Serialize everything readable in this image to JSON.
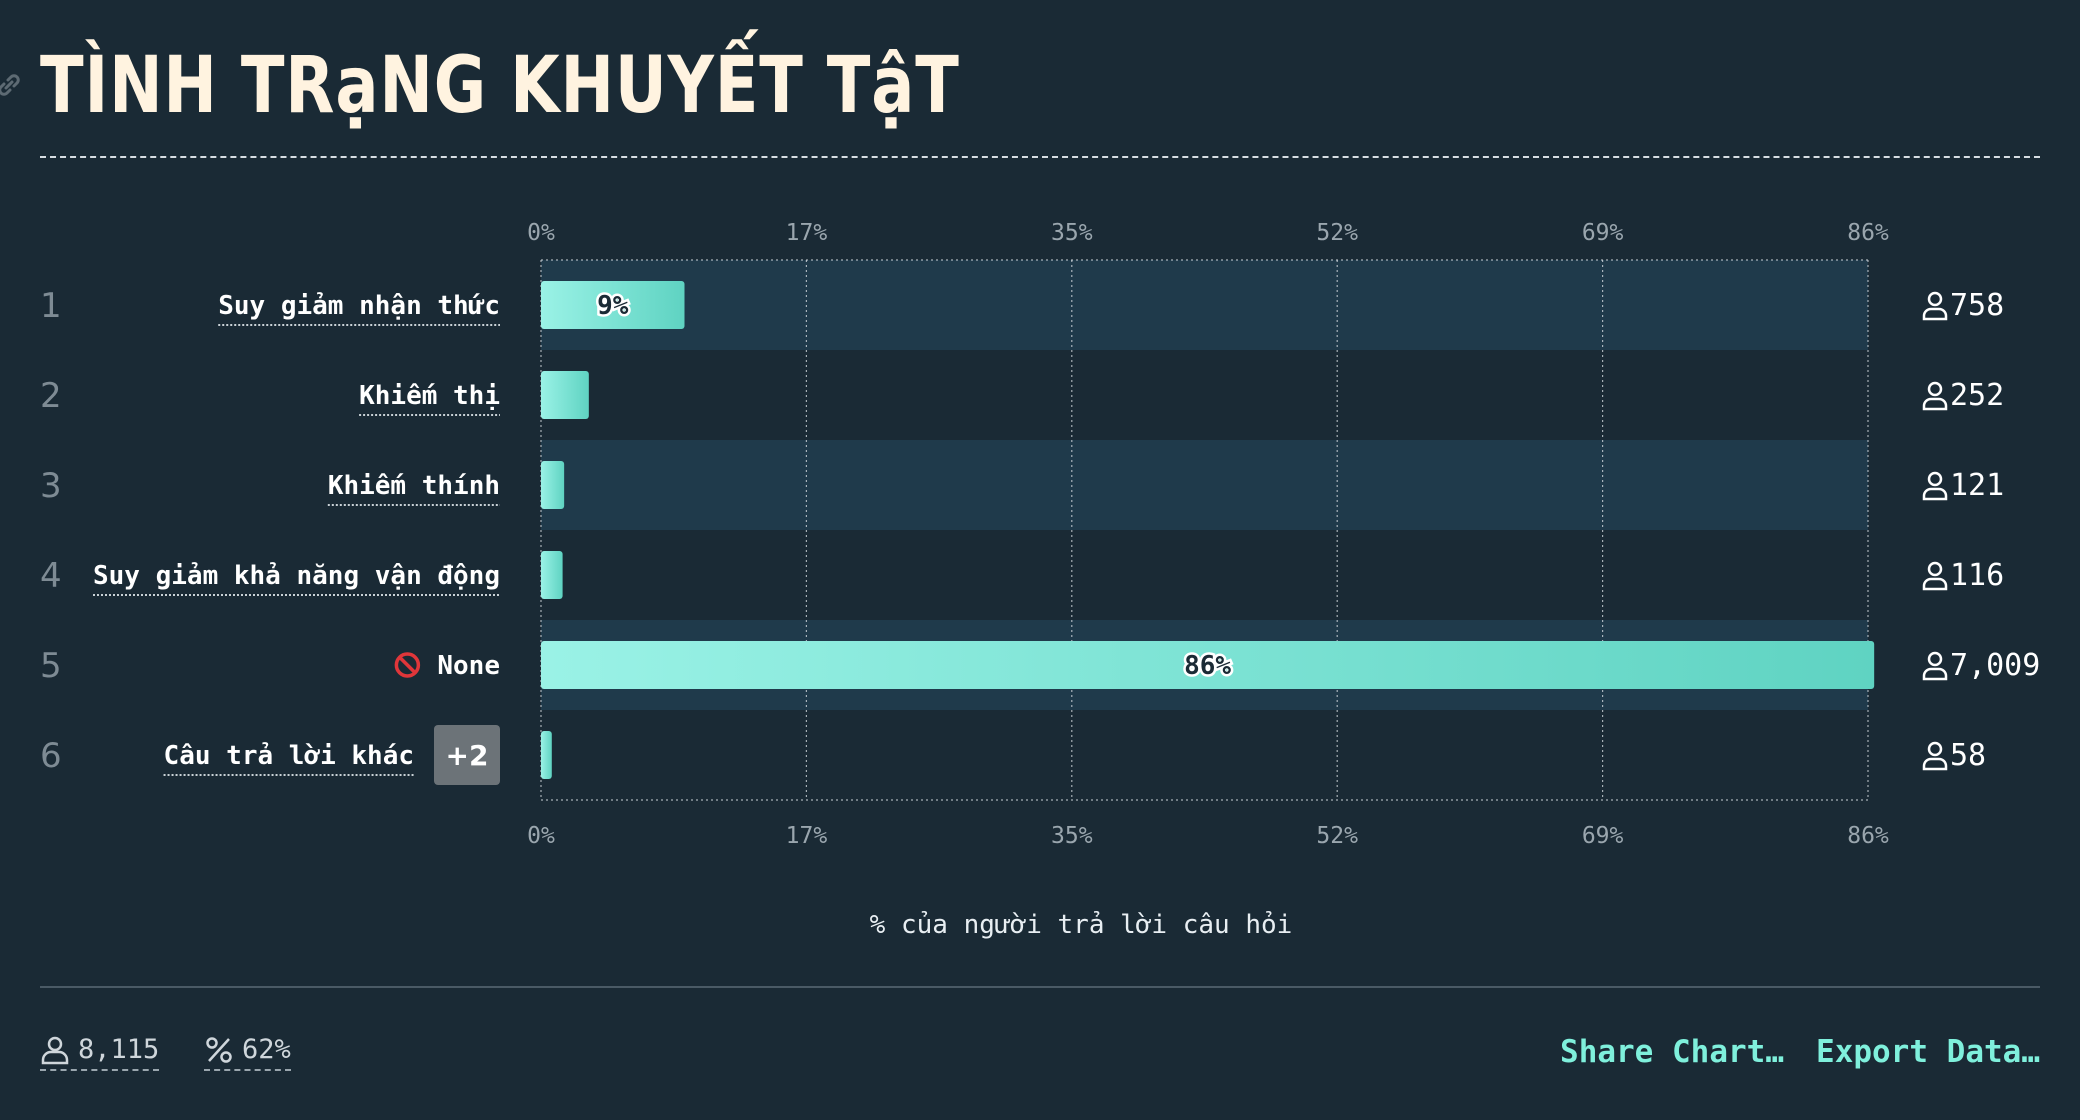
{
  "title": "TÌNH TRạNG KHUYẾT TậT",
  "colors": {
    "background": "#1a2a35",
    "bar_start": "#9af2e6",
    "bar_end": "#5fd3c2",
    "accent": "#7ff0dc"
  },
  "chart_data": {
    "type": "bar",
    "orientation": "horizontal",
    "xlabel": "% của người trả lời câu hỏi",
    "xlim": [
      0,
      86
    ],
    "xticks": [
      "0%",
      "17%",
      "35%",
      "52%",
      "69%",
      "86%"
    ],
    "categories": [
      "Suy giảm nhận thức",
      "Khiếm thị",
      "Khiếm thính",
      "Suy giảm khả năng vận động",
      "None",
      "Câu trả lời khác"
    ],
    "ranks": [
      "1",
      "2",
      "3",
      "4",
      "5",
      "6"
    ],
    "values": [
      9.3,
      3.1,
      1.5,
      1.4,
      86.4,
      0.7
    ],
    "value_labels": [
      "9%",
      "",
      "",
      "",
      "86%",
      ""
    ],
    "counts": [
      "758",
      "252",
      "121",
      "116",
      "7,009",
      "58"
    ],
    "icons": [
      "",
      "",
      "",
      "",
      "no-entry-icon",
      ""
    ],
    "more_badge": "+2",
    "grid": true
  },
  "footer": {
    "respondents": "8,115",
    "response_rate": "62%",
    "share_label": "Share Chart…",
    "export_label": "Export Data…"
  }
}
